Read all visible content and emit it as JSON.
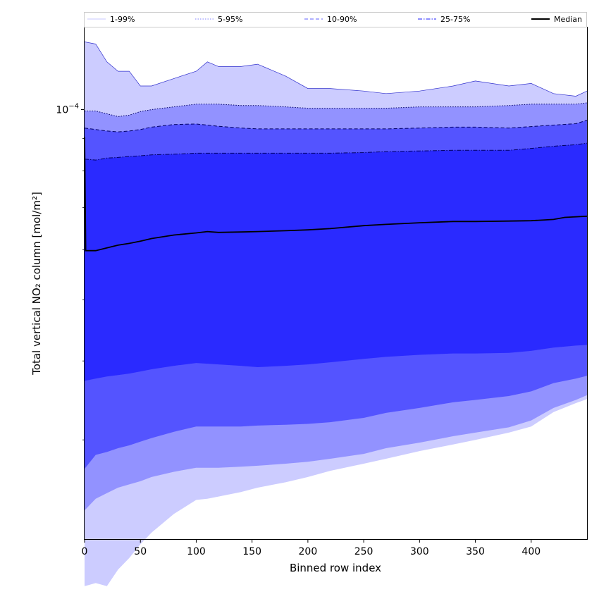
{
  "chart_data": {
    "type": "area",
    "title": "",
    "xlabel": "Binned row index",
    "ylabel": "Total vertical NO₂ column [mol/m²]",
    "xlim": [
      0,
      450
    ],
    "ylim_log10": [
      -4.68,
      -3.87
    ],
    "yscale": "log",
    "x_ticks": [
      0,
      50,
      100,
      150,
      200,
      250,
      300,
      350,
      400
    ],
    "x_tick_labels": [
      "0",
      "50",
      "100",
      "150",
      "200",
      "250",
      "300",
      "350",
      "400"
    ],
    "y_major_tick": 0.0001,
    "y_major_tick_base": "10",
    "y_major_tick_exp": "−4",
    "y_minor_ticks": [
      2e-05,
      3e-05,
      4e-05,
      5e-05,
      6e-05,
      7e-05,
      8e-05,
      9e-05
    ],
    "legend": {
      "placement": "top",
      "entries": [
        {
          "label": "1-99%",
          "color": "#d4d4ff",
          "style": "solid"
        },
        {
          "label": "5-95%",
          "color": "#9a9aff",
          "style": "dotted"
        },
        {
          "label": "10-90%",
          "color": "#8080ff",
          "style": "dashed"
        },
        {
          "label": "25-75%",
          "color": "#4a4aff",
          "style": "dashdot"
        },
        {
          "label": "Median",
          "color": "#000000",
          "style": "solid"
        }
      ]
    },
    "x": [
      0,
      10,
      20,
      30,
      40,
      50,
      60,
      80,
      100,
      110,
      120,
      140,
      155,
      180,
      200,
      220,
      250,
      270,
      300,
      330,
      350,
      380,
      400,
      420,
      440,
      450
    ],
    "bands": [
      {
        "name": "1-99%",
        "fill": "#ccccff",
        "lower": [
          1.76e-05,
          1.78e-05,
          1.76e-05,
          1.87e-05,
          1.95e-05,
          2.05e-05,
          2.14e-05,
          2.29e-05,
          2.41e-05,
          2.42e-05,
          2.44e-05,
          2.48e-05,
          2.52e-05,
          2.57e-05,
          2.62e-05,
          2.68e-05,
          2.75e-05,
          2.8e-05,
          2.88e-05,
          2.95e-05,
          3e-05,
          3.08e-05,
          3.15e-05,
          3.32e-05,
          3.43e-05,
          3.48e-05
        ],
        "upper": [
          0.000128,
          0.000127,
          0.000119,
          0.000115,
          0.000115,
          0.000109,
          0.000109,
          0.000112,
          0.000115,
          0.000119,
          0.000117,
          0.000117,
          0.000118,
          0.000113,
          0.000108,
          0.000108,
          0.000107,
          0.000106,
          0.000107,
          0.000109,
          0.000111,
          0.000109,
          0.00011,
          0.000106,
          0.000105,
          0.000107
        ]
      },
      {
        "name": "5-95%",
        "fill": "#9292ff",
        "lower": [
          2.32e-05,
          2.42e-05,
          2.47e-05,
          2.52e-05,
          2.55e-05,
          2.58e-05,
          2.62e-05,
          2.67e-05,
          2.71e-05,
          2.71e-05,
          2.71e-05,
          2.72e-05,
          2.73e-05,
          2.75e-05,
          2.77e-05,
          2.8e-05,
          2.85e-05,
          2.91e-05,
          2.97e-05,
          3.04e-05,
          3.08e-05,
          3.14e-05,
          3.22e-05,
          3.37e-05,
          3.47e-05,
          3.53e-05
        ],
        "upper": [
          9.95e-05,
          9.95e-05,
          9.85e-05,
          9.75e-05,
          9.8e-05,
          9.93e-05,
          0.0001,
          0.000101,
          0.000102,
          0.000102,
          0.000102,
          0.0001015,
          0.0001015,
          0.000101,
          0.0001005,
          0.0001005,
          0.0001005,
          0.0001005,
          0.000101,
          0.000101,
          0.000101,
          0.0001015,
          0.000102,
          0.000102,
          0.000102,
          0.0001025
        ]
      },
      {
        "name": "10-90%",
        "fill": "#5454ff",
        "lower": [
          2.7e-05,
          2.84e-05,
          2.87e-05,
          2.91e-05,
          2.94e-05,
          2.98e-05,
          3.02e-05,
          3.09e-05,
          3.15e-05,
          3.15e-05,
          3.15e-05,
          3.15e-05,
          3.16e-05,
          3.17e-05,
          3.18e-05,
          3.2e-05,
          3.25e-05,
          3.31e-05,
          3.37e-05,
          3.44e-05,
          3.47e-05,
          3.52e-05,
          3.58e-05,
          3.69e-05,
          3.75e-05,
          3.79e-05
        ],
        "upper": [
          9.35e-05,
          9.3e-05,
          9.25e-05,
          9.22e-05,
          9.25e-05,
          9.3e-05,
          9.38e-05,
          9.47e-05,
          9.49e-05,
          9.45e-05,
          9.41e-05,
          9.35e-05,
          9.32e-05,
          9.32e-05,
          9.32e-05,
          9.32e-05,
          9.32e-05,
          9.32e-05,
          9.35e-05,
          9.38e-05,
          9.38e-05,
          9.35e-05,
          9.4e-05,
          9.45e-05,
          9.5e-05,
          9.62e-05
        ]
      },
      {
        "name": "25-75%",
        "fill": "#2a2aff",
        "lower": [
          3.72e-05,
          3.75e-05,
          3.78e-05,
          3.8e-05,
          3.82e-05,
          3.85e-05,
          3.88e-05,
          3.93e-05,
          3.97e-05,
          3.96e-05,
          3.95e-05,
          3.93e-05,
          3.91e-05,
          3.93e-05,
          3.95e-05,
          3.98e-05,
          4.03e-05,
          4.06e-05,
          4.09e-05,
          4.11e-05,
          4.11e-05,
          4.12e-05,
          4.15e-05,
          4.2e-05,
          4.23e-05,
          4.24e-05
        ],
        "upper": [
          8.35e-05,
          8.32e-05,
          8.38e-05,
          8.4e-05,
          8.43e-05,
          8.45e-05,
          8.48e-05,
          8.5e-05,
          8.53e-05,
          8.53e-05,
          8.53e-05,
          8.53e-05,
          8.53e-05,
          8.53e-05,
          8.53e-05,
          8.53e-05,
          8.55e-05,
          8.58e-05,
          8.6e-05,
          8.62e-05,
          8.62e-05,
          8.62e-05,
          8.68e-05,
          8.75e-05,
          8.8e-05,
          8.85e-05
        ]
      }
    ],
    "median": {
      "name": "Median",
      "x": [
        0,
        1,
        5,
        10,
        20,
        30,
        40,
        50,
        60,
        80,
        100,
        110,
        120,
        140,
        155,
        180,
        200,
        220,
        250,
        270,
        300,
        330,
        350,
        380,
        400,
        420,
        430,
        450
      ],
      "y": [
        9.05e-05,
        5.98e-05,
        5.98e-05,
        5.98e-05,
        6.04e-05,
        6.1e-05,
        6.14e-05,
        6.19e-05,
        6.25e-05,
        6.33e-05,
        6.38e-05,
        6.41e-05,
        6.39e-05,
        6.4e-05,
        6.41e-05,
        6.43e-05,
        6.45e-05,
        6.48e-05,
        6.55e-05,
        6.58e-05,
        6.62e-05,
        6.65e-05,
        6.65e-05,
        6.66e-05,
        6.67e-05,
        6.7e-05,
        6.75e-05,
        6.78e-05
      ]
    }
  }
}
